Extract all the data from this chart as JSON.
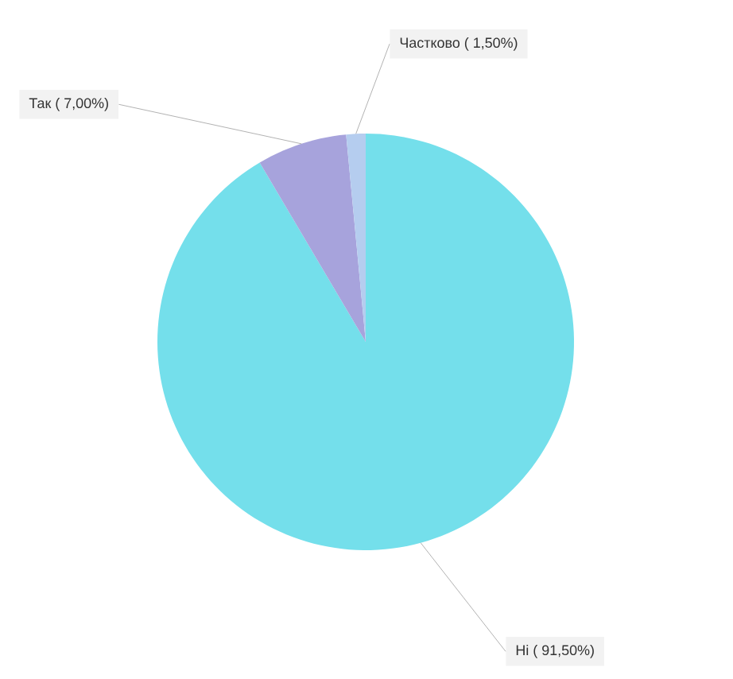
{
  "chart_data": {
    "type": "pie",
    "categories": [
      "Ні",
      "Так",
      "Частково"
    ],
    "values": [
      91.5,
      7.0,
      1.5
    ],
    "value_labels": [
      "( 91,50%)",
      "( 7,00%)",
      "( 1,50%)"
    ],
    "colors": [
      "#74dfeb",
      "#a7a3dc",
      "#b5cdef"
    ]
  }
}
